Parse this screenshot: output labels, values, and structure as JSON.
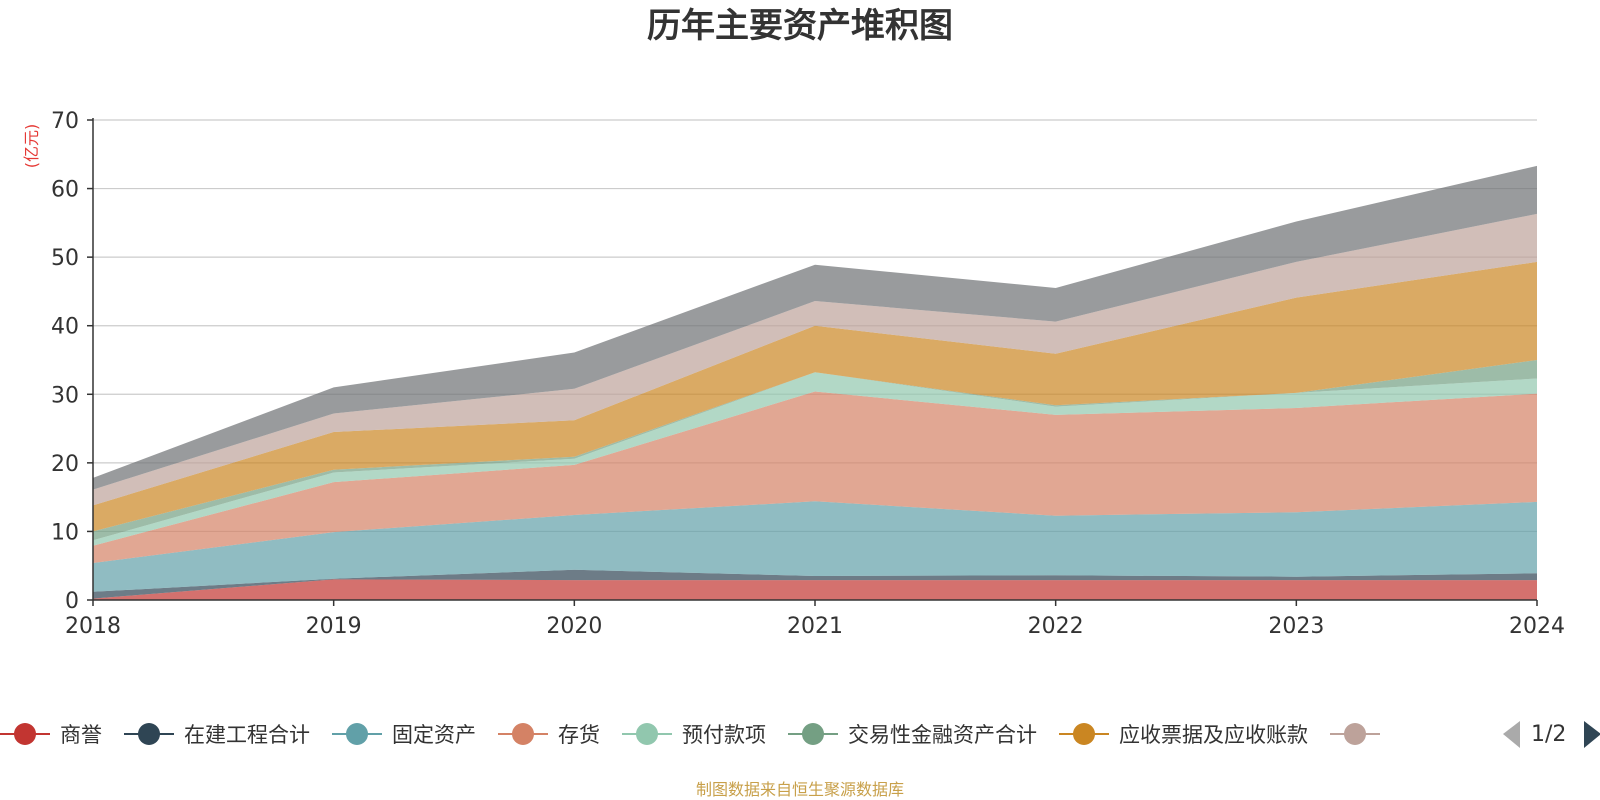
{
  "chart_data": {
    "type": "area",
    "stacked": true,
    "title": "历年主要资产堆积图",
    "ylabel": "(亿元)",
    "xlabel": "",
    "x": [
      "2018",
      "2019",
      "2020",
      "2021",
      "2022",
      "2023",
      "2024"
    ],
    "ylim": [
      0,
      70
    ],
    "yticks": [
      0,
      10,
      20,
      30,
      40,
      50,
      60,
      70
    ],
    "grid": true,
    "legend_position": "bottom",
    "series": [
      {
        "name": "商誉",
        "color": "#c23531",
        "values": [
          0.2,
          3.0,
          2.9,
          2.9,
          2.9,
          2.9,
          2.9
        ]
      },
      {
        "name": "在建工程合计",
        "color": "#2f4554",
        "values": [
          1.0,
          0.1,
          1.5,
          0.6,
          0.7,
          0.5,
          1.0
        ]
      },
      {
        "name": "固定资产",
        "color": "#61a0a8",
        "values": [
          4.2,
          6.8,
          8.0,
          10.9,
          8.7,
          9.4,
          10.4
        ]
      },
      {
        "name": "存货",
        "color": "#d48265",
        "values": [
          2.5,
          7.3,
          7.3,
          16.0,
          14.7,
          15.2,
          15.8
        ]
      },
      {
        "name": "预付款项",
        "color": "#91c7ae",
        "values": [
          0.8,
          1.4,
          0.9,
          2.8,
          1.2,
          2.2,
          2.2
        ]
      },
      {
        "name": "交易性金融资产合计",
        "color": "#749f83",
        "values": [
          1.3,
          0.4,
          0.3,
          0.0,
          0.2,
          0.0,
          2.7
        ]
      },
      {
        "name": "应收票据及应收账款",
        "color": "#ca8622",
        "values": [
          3.8,
          5.5,
          5.3,
          6.8,
          7.5,
          13.9,
          14.3
        ]
      },
      {
        "name": "",
        "color": "#bda29a",
        "values": [
          2.3,
          2.7,
          4.6,
          3.6,
          4.7,
          5.2,
          7.0
        ]
      },
      {
        "name": "",
        "color": "#6e7074",
        "values": [
          1.7,
          3.8,
          5.3,
          5.3,
          4.9,
          5.9,
          7.0
        ]
      }
    ]
  },
  "legend": {
    "page_indicator": "1/2"
  },
  "footer": {
    "source_text": "制图数据来自恒生聚源数据库"
  }
}
